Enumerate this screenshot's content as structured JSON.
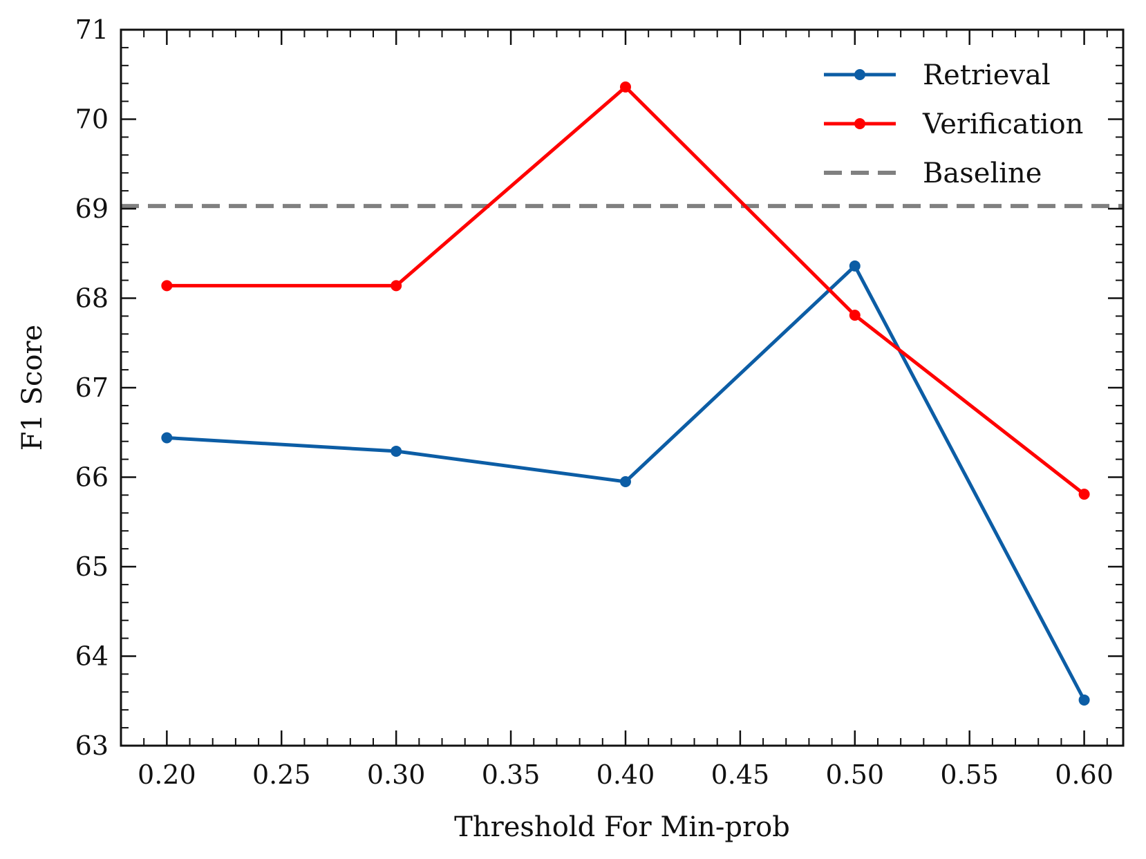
{
  "chart_data": {
    "type": "line",
    "title": "",
    "xlabel": "Threshold For Min-prob",
    "ylabel": "F1 Score",
    "xlim": [
      0.18,
      0.617
    ],
    "ylim": [
      63,
      71
    ],
    "xticks": [
      0.2,
      0.25,
      0.3,
      0.35,
      0.4,
      0.45,
      0.5,
      0.55,
      0.6
    ],
    "xtick_labels": [
      "0.20",
      "0.25",
      "0.30",
      "0.35",
      "0.40",
      "0.45",
      "0.50",
      "0.55",
      "0.60"
    ],
    "yticks": [
      63,
      64,
      65,
      66,
      67,
      68,
      69,
      70,
      71
    ],
    "ytick_labels": [
      "63",
      "64",
      "65",
      "66",
      "67",
      "68",
      "69",
      "70",
      "71"
    ],
    "grid": false,
    "legend_position": "top-right",
    "series": [
      {
        "name": "Retrieval",
        "color": "#0C5DA5",
        "style": "solid",
        "marker": "circle",
        "x": [
          0.2,
          0.3,
          0.4,
          0.5,
          0.6
        ],
        "y": [
          66.44,
          66.29,
          65.95,
          68.36,
          63.51
        ]
      },
      {
        "name": "Verification",
        "color": "#FF0000",
        "style": "solid",
        "marker": "circle",
        "x": [
          0.2,
          0.3,
          0.4,
          0.5,
          0.6
        ],
        "y": [
          68.14,
          68.14,
          70.36,
          67.81,
          65.81
        ]
      }
    ],
    "reference_lines": [
      {
        "name": "Baseline",
        "color": "#808080",
        "style": "dashed",
        "y": 69.03
      }
    ]
  }
}
